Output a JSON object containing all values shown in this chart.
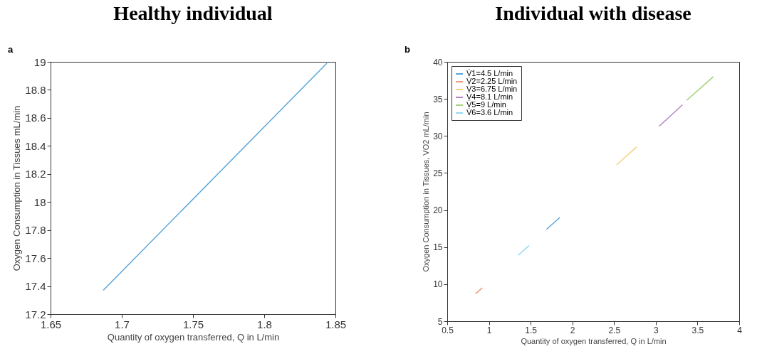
{
  "chart_data": [
    {
      "type": "line",
      "title": "Healthy individual",
      "annotations": [
        "a"
      ],
      "xlabel": "Quantity of oxygen transferred, Q in L/min",
      "ylabel": "Oxygen Consumption in Tissues mL/min",
      "xlim": [
        1.65,
        1.85
      ],
      "xticks": [
        1.65,
        1.7,
        1.75,
        1.8,
        1.85
      ],
      "ylim": [
        17.2,
        19
      ],
      "yticks": [
        17.2,
        17.4,
        17.6,
        17.8,
        18,
        18.2,
        18.4,
        18.6,
        18.8,
        19
      ],
      "grid": false,
      "series": [
        {
          "color": "#5aa5da",
          "x": [
            1.687,
            1.844
          ],
          "values": [
            17.37,
            18.99
          ]
        }
      ]
    },
    {
      "type": "line",
      "title": "Individual with disease",
      "annotations": [
        "b"
      ],
      "xlabel": "Quantity of oxygen transferred, Q in L/min",
      "ylabel": "Oxygen Consumption in Tissues, VO2 mL/min",
      "xlim": [
        0.5,
        4
      ],
      "xticks": [
        0.5,
        1,
        1.5,
        2,
        2.5,
        3,
        3.5,
        4
      ],
      "ylim": [
        5,
        40
      ],
      "yticks": [
        5,
        10,
        15,
        20,
        25,
        30,
        35,
        40
      ],
      "grid": false,
      "legend": "top left",
      "series": [
        {
          "name": "V̇1=4.5 L/min",
          "color": "#5aa5da",
          "x": [
            1.69,
            1.85
          ],
          "values": [
            17.4,
            19
          ]
        },
        {
          "name": "V̇2=2.25 L/min",
          "color": "#ee9a75",
          "x": [
            0.84,
            0.92
          ],
          "values": [
            8.7,
            9.5
          ]
        },
        {
          "name": "V̇3=6.75 L/min",
          "color": "#f5d27e",
          "x": [
            2.53,
            2.77
          ],
          "values": [
            26.1,
            28.5
          ]
        },
        {
          "name": "V̇4=8.1 L/min",
          "color": "#b486c4",
          "x": [
            3.04,
            3.32
          ],
          "values": [
            31.3,
            34.2
          ]
        },
        {
          "name": "V̇5=9 L/min",
          "color": "#a6d07a",
          "x": [
            3.37,
            3.69
          ],
          "values": [
            34.8,
            38
          ]
        },
        {
          "name": "V̇6=3.6 L/min",
          "color": "#94d8f4",
          "x": [
            1.35,
            1.48
          ],
          "values": [
            13.9,
            15.2
          ]
        }
      ]
    }
  ]
}
